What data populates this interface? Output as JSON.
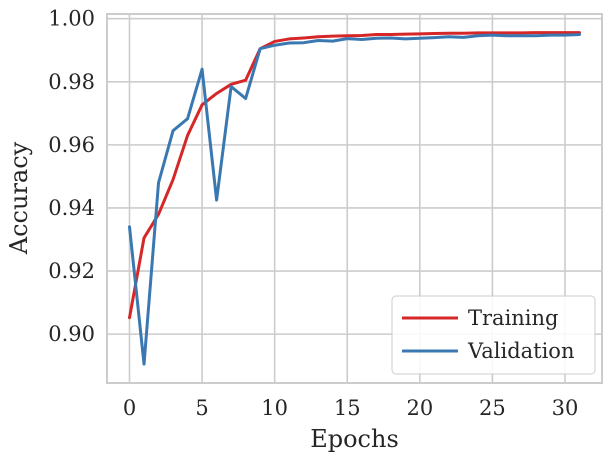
{
  "chart_data": {
    "type": "line",
    "title": "",
    "xlabel": "Epochs",
    "ylabel": "Accuracy",
    "xlim": [
      -1.55,
      32.55
    ],
    "ylim": [
      0.8845,
      1.0015
    ],
    "xticks": [
      0,
      5,
      10,
      15,
      20,
      25,
      30
    ],
    "xtick_labels": [
      "0",
      "5",
      "10",
      "15",
      "20",
      "25",
      "30"
    ],
    "yticks": [
      0.9,
      0.92,
      0.94,
      0.96,
      0.98,
      1.0
    ],
    "ytick_labels": [
      "0.90",
      "0.92",
      "0.94",
      "0.96",
      "0.98",
      "1.00"
    ],
    "grid": true,
    "legend_position": "lower-right",
    "x": [
      0,
      1,
      2,
      3,
      4,
      5,
      6,
      7,
      8,
      9,
      10,
      11,
      12,
      13,
      14,
      15,
      16,
      17,
      18,
      19,
      20,
      21,
      22,
      23,
      24,
      25,
      26,
      27,
      28,
      29,
      30,
      31
    ],
    "series": [
      {
        "name": "Training",
        "color": "#d62728",
        "values": [
          0.9052,
          0.9305,
          0.938,
          0.949,
          0.963,
          0.9727,
          0.9763,
          0.9792,
          0.9805,
          0.9905,
          0.9928,
          0.9936,
          0.9939,
          0.9943,
          0.9945,
          0.9946,
          0.9947,
          0.995,
          0.995,
          0.9951,
          0.9952,
          0.9953,
          0.9954,
          0.9954,
          0.9955,
          0.9955,
          0.9955,
          0.9955,
          0.9956,
          0.9956,
          0.9956,
          0.9956
        ]
      },
      {
        "name": "Validation",
        "color": "#3a78b2",
        "values": [
          0.934,
          0.8905,
          0.948,
          0.9645,
          0.9683,
          0.984,
          0.9425,
          0.9785,
          0.9747,
          0.9905,
          0.9916,
          0.9923,
          0.9924,
          0.9931,
          0.9929,
          0.9937,
          0.9934,
          0.9938,
          0.9939,
          0.9936,
          0.9938,
          0.994,
          0.9943,
          0.9941,
          0.9946,
          0.9948,
          0.9946,
          0.9946,
          0.9946,
          0.9948,
          0.9948,
          0.995
        ]
      }
    ]
  }
}
